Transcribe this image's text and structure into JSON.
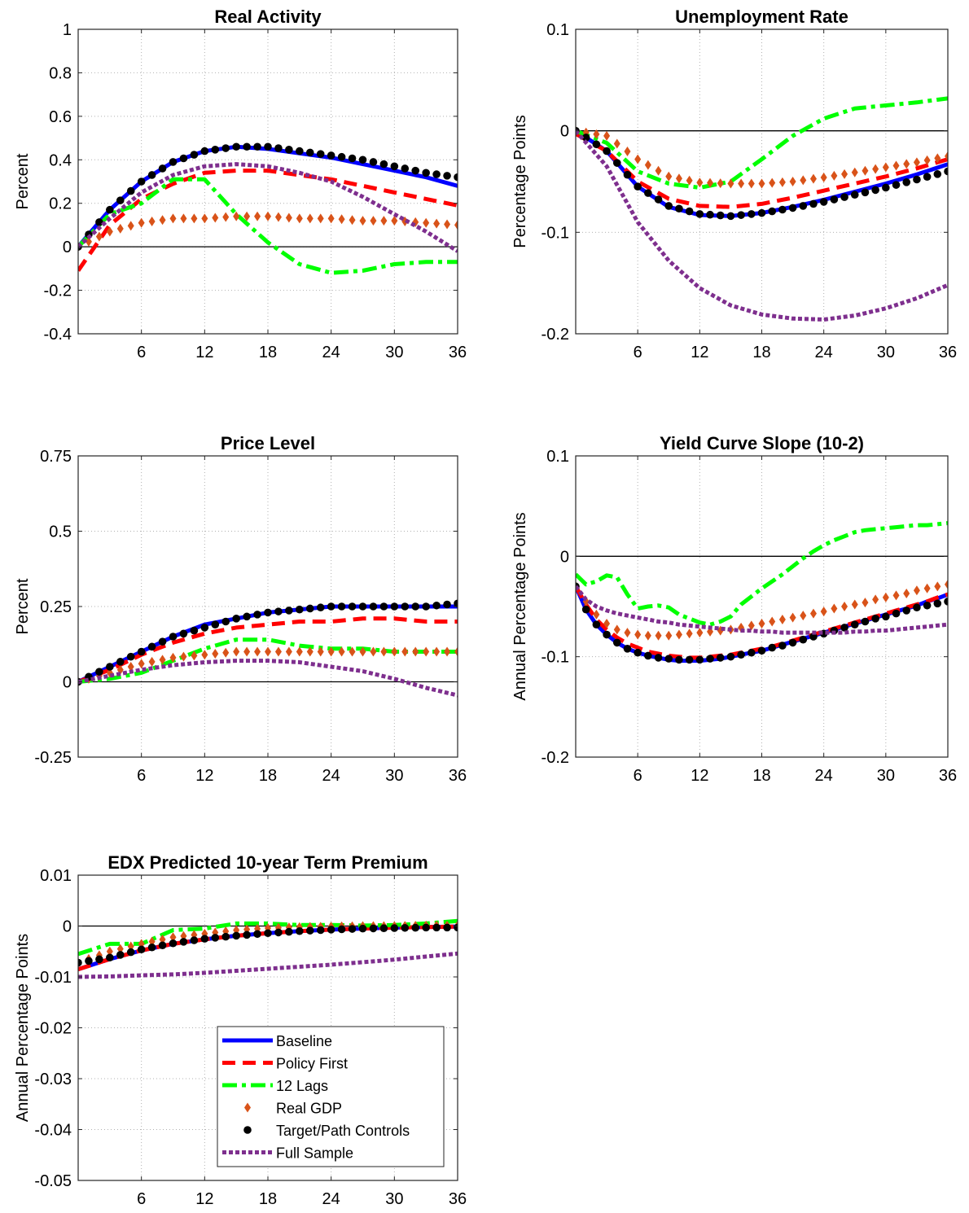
{
  "colors": {
    "baseline": "#0000ff",
    "policy_first": "#ff0000",
    "lags12": "#00ff00",
    "real_gdp": "#d95319",
    "target_path": "#000000",
    "full_sample": "#7e2f8e"
  },
  "legend": {
    "placement": "inside panel 5, lower-right",
    "entries": [
      "Baseline",
      "Policy First",
      "12 Lags",
      "Real GDP",
      "Target/Path Controls",
      "Full Sample"
    ]
  },
  "chart_data": [
    {
      "type": "line",
      "title": "Real Activity",
      "xlabel": "",
      "ylabel": "Percent",
      "xlim": [
        0,
        36
      ],
      "ylim": [
        -0.4,
        1
      ],
      "xticks": [
        6,
        12,
        18,
        24,
        30,
        36
      ],
      "xtick_labels": [
        "6",
        "12",
        "18",
        "24",
        "30",
        "36"
      ],
      "yticks": [
        -0.4,
        -0.2,
        0,
        0.2,
        0.4,
        0.6,
        0.8,
        1
      ],
      "ytick_labels": [
        "-0.4",
        "-0.2",
        "0",
        "0.2",
        "0.4",
        "0.6",
        "0.8",
        "1"
      ],
      "grid": true,
      "zero_line": true,
      "x": [
        0,
        3,
        6,
        9,
        12,
        15,
        18,
        21,
        24,
        27,
        30,
        33,
        36
      ],
      "series": [
        {
          "name": "Baseline",
          "values": [
            0,
            0.17,
            0.3,
            0.39,
            0.44,
            0.46,
            0.45,
            0.43,
            0.41,
            0.38,
            0.35,
            0.32,
            0.28
          ]
        },
        {
          "name": "Policy First",
          "values": [
            -0.11,
            0.1,
            0.22,
            0.29,
            0.34,
            0.35,
            0.35,
            0.33,
            0.31,
            0.28,
            0.25,
            0.22,
            0.19
          ]
        },
        {
          "name": "12 Lags",
          "values": [
            0,
            0.15,
            0.2,
            0.31,
            0.31,
            0.15,
            0.02,
            -0.08,
            -0.12,
            -0.11,
            -0.08,
            -0.07,
            -0.07
          ]
        },
        {
          "name": "Real GDP",
          "values": [
            0,
            0.07,
            0.11,
            0.13,
            0.13,
            0.14,
            0.14,
            0.13,
            0.13,
            0.12,
            0.12,
            0.11,
            0.1
          ]
        },
        {
          "name": "Target/Path Controls",
          "values": [
            0,
            0.17,
            0.3,
            0.39,
            0.44,
            0.46,
            0.46,
            0.44,
            0.42,
            0.4,
            0.37,
            0.34,
            0.32
          ]
        },
        {
          "name": "Full Sample",
          "values": [
            0,
            0.13,
            0.25,
            0.33,
            0.37,
            0.38,
            0.37,
            0.34,
            0.3,
            0.23,
            0.15,
            0.07,
            -0.02
          ]
        }
      ]
    },
    {
      "type": "line",
      "title": "Unemployment Rate",
      "xlabel": "",
      "ylabel": "Percentage Points",
      "xlim": [
        0,
        36
      ],
      "ylim": [
        -0.2,
        0.1
      ],
      "xticks": [
        6,
        12,
        18,
        24,
        30,
        36
      ],
      "xtick_labels": [
        "6",
        "12",
        "18",
        "24",
        "30",
        "36"
      ],
      "yticks": [
        -0.2,
        -0.1,
        0,
        0.1
      ],
      "ytick_labels": [
        "-0.2",
        "-0.1",
        "0",
        "0.1"
      ],
      "grid": true,
      "zero_line": true,
      "x": [
        0,
        3,
        6,
        9,
        12,
        15,
        18,
        21,
        24,
        27,
        30,
        33,
        36
      ],
      "series": [
        {
          "name": "Baseline",
          "values": [
            0,
            -0.02,
            -0.055,
            -0.075,
            -0.083,
            -0.084,
            -0.081,
            -0.075,
            -0.068,
            -0.06,
            -0.052,
            -0.043,
            -0.033
          ]
        },
        {
          "name": "Policy First",
          "values": [
            -0.003,
            -0.02,
            -0.05,
            -0.067,
            -0.074,
            -0.075,
            -0.072,
            -0.066,
            -0.059,
            -0.052,
            -0.045,
            -0.037,
            -0.028
          ]
        },
        {
          "name": "12 Lags",
          "values": [
            0,
            -0.012,
            -0.04,
            -0.052,
            -0.056,
            -0.05,
            -0.028,
            -0.005,
            0.012,
            0.022,
            0.025,
            0.028,
            0.032
          ]
        },
        {
          "name": "Real GDP",
          "values": [
            0,
            -0.005,
            -0.028,
            -0.045,
            -0.051,
            -0.052,
            -0.052,
            -0.05,
            -0.046,
            -0.041,
            -0.036,
            -0.031,
            -0.025
          ]
        },
        {
          "name": "Target/Path Controls",
          "values": [
            0,
            -0.02,
            -0.055,
            -0.074,
            -0.082,
            -0.084,
            -0.081,
            -0.076,
            -0.07,
            -0.063,
            -0.056,
            -0.048,
            -0.04
          ]
        },
        {
          "name": "Full Sample",
          "values": [
            0,
            -0.035,
            -0.09,
            -0.128,
            -0.155,
            -0.172,
            -0.181,
            -0.185,
            -0.186,
            -0.182,
            -0.175,
            -0.165,
            -0.152
          ]
        }
      ]
    },
    {
      "type": "line",
      "title": "Price Level",
      "xlabel": "",
      "ylabel": "Percent",
      "xlim": [
        0,
        36
      ],
      "ylim": [
        -0.25,
        0.75
      ],
      "xticks": [
        6,
        12,
        18,
        24,
        30,
        36
      ],
      "xtick_labels": [
        "6",
        "12",
        "18",
        "24",
        "30",
        "36"
      ],
      "yticks": [
        -0.25,
        0,
        0.25,
        0.5,
        0.75
      ],
      "ytick_labels": [
        "-0.25",
        "0",
        "0.25",
        "0.5",
        "0.75"
      ],
      "grid": true,
      "zero_line": true,
      "x": [
        0,
        3,
        6,
        9,
        12,
        15,
        18,
        21,
        24,
        27,
        30,
        33,
        36
      ],
      "series": [
        {
          "name": "Baseline",
          "values": [
            0,
            0.05,
            0.1,
            0.15,
            0.19,
            0.21,
            0.23,
            0.24,
            0.25,
            0.25,
            0.25,
            0.25,
            0.25
          ]
        },
        {
          "name": "Policy First",
          "values": [
            0,
            0.04,
            0.09,
            0.13,
            0.16,
            0.18,
            0.19,
            0.2,
            0.2,
            0.21,
            0.21,
            0.2,
            0.2
          ]
        },
        {
          "name": "12 Lags",
          "values": [
            0,
            0.01,
            0.03,
            0.07,
            0.11,
            0.14,
            0.14,
            0.12,
            0.11,
            0.11,
            0.1,
            0.1,
            0.1
          ]
        },
        {
          "name": "Real GDP",
          "values": [
            0,
            0.03,
            0.06,
            0.08,
            0.09,
            0.1,
            0.1,
            0.1,
            0.1,
            0.1,
            0.1,
            0.1,
            0.1
          ]
        },
        {
          "name": "Target/Path Controls",
          "values": [
            0,
            0.05,
            0.1,
            0.15,
            0.18,
            0.21,
            0.23,
            0.24,
            0.25,
            0.25,
            0.25,
            0.25,
            0.26
          ]
        },
        {
          "name": "Full Sample",
          "values": [
            0,
            0.02,
            0.04,
            0.055,
            0.065,
            0.07,
            0.07,
            0.065,
            0.05,
            0.035,
            0.01,
            -0.02,
            -0.045
          ]
        }
      ]
    },
    {
      "type": "line",
      "title": "Yield Curve Slope (10-2)",
      "xlabel": "",
      "ylabel": "Annual Percentage Points",
      "xlim": [
        0,
        36
      ],
      "ylim": [
        -0.2,
        0.1
      ],
      "xticks": [
        6,
        12,
        18,
        24,
        30,
        36
      ],
      "xtick_labels": [
        "6",
        "12",
        "18",
        "24",
        "30",
        "36"
      ],
      "yticks": [
        -0.2,
        -0.1,
        0,
        0.1
      ],
      "ytick_labels": [
        "-0.2",
        "-0.1",
        "0",
        "0.1"
      ],
      "grid": true,
      "zero_line": true,
      "x": [
        0,
        1,
        2,
        3,
        4,
        5,
        6,
        7,
        8,
        9,
        10,
        11,
        12,
        13,
        14,
        15,
        16,
        17,
        18,
        19,
        20,
        21,
        22,
        23,
        24,
        25,
        26,
        27,
        28,
        29,
        30,
        31,
        32,
        33,
        34,
        35,
        36
      ],
      "series": [
        {
          "name": "Baseline",
          "values": [
            -0.03,
            -0.053,
            -0.068,
            -0.078,
            -0.086,
            -0.092,
            -0.096,
            -0.099,
            -0.101,
            -0.103,
            -0.104,
            -0.104,
            -0.104,
            -0.103,
            -0.102,
            -0.1,
            -0.098,
            -0.096,
            -0.094,
            -0.091,
            -0.088,
            -0.085,
            -0.082,
            -0.079,
            -0.076,
            -0.073,
            -0.07,
            -0.067,
            -0.064,
            -0.061,
            -0.058,
            -0.055,
            -0.052,
            -0.049,
            -0.045,
            -0.042,
            -0.038
          ]
        },
        {
          "name": "Policy First",
          "values": [
            -0.03,
            -0.048,
            -0.063,
            -0.073,
            -0.081,
            -0.087,
            -0.091,
            -0.095,
            -0.097,
            -0.099,
            -0.1,
            -0.101,
            -0.101,
            -0.1,
            -0.099,
            -0.098,
            -0.096,
            -0.094,
            -0.092,
            -0.09,
            -0.087,
            -0.084,
            -0.081,
            -0.078,
            -0.075,
            -0.072,
            -0.069,
            -0.066,
            -0.063,
            -0.06,
            -0.057,
            -0.054,
            -0.051,
            -0.048,
            -0.045,
            -0.041,
            -0.038
          ]
        },
        {
          "name": "12 Lags",
          "values": [
            -0.018,
            -0.028,
            -0.025,
            -0.019,
            -0.021,
            -0.038,
            -0.052,
            -0.05,
            -0.049,
            -0.051,
            -0.058,
            -0.062,
            -0.066,
            -0.068,
            -0.065,
            -0.06,
            -0.048,
            -0.04,
            -0.032,
            -0.025,
            -0.018,
            -0.01,
            -0.002,
            0.005,
            0.011,
            0.016,
            0.02,
            0.024,
            0.026,
            0.027,
            0.028,
            0.029,
            0.03,
            0.031,
            0.031,
            0.032,
            0.033
          ]
        },
        {
          "name": "Real GDP",
          "values": [
            -0.03,
            -0.045,
            -0.058,
            -0.067,
            -0.073,
            -0.076,
            -0.078,
            -0.079,
            -0.079,
            -0.079,
            -0.078,
            -0.077,
            -0.076,
            -0.075,
            -0.074,
            -0.073,
            -0.071,
            -0.069,
            -0.067,
            -0.065,
            -0.063,
            -0.061,
            -0.059,
            -0.057,
            -0.055,
            -0.052,
            -0.05,
            -0.048,
            -0.046,
            -0.043,
            -0.041,
            -0.039,
            -0.037,
            -0.034,
            -0.032,
            -0.03,
            -0.028
          ]
        },
        {
          "name": "Target/Path Controls",
          "values": [
            -0.03,
            -0.053,
            -0.068,
            -0.078,
            -0.086,
            -0.092,
            -0.096,
            -0.099,
            -0.101,
            -0.102,
            -0.103,
            -0.103,
            -0.103,
            -0.102,
            -0.101,
            -0.1,
            -0.098,
            -0.096,
            -0.094,
            -0.091,
            -0.089,
            -0.086,
            -0.083,
            -0.08,
            -0.077,
            -0.074,
            -0.071,
            -0.068,
            -0.065,
            -0.062,
            -0.06,
            -0.057,
            -0.054,
            -0.051,
            -0.049,
            -0.047,
            -0.045
          ]
        },
        {
          "name": "Full Sample",
          "values": [
            -0.03,
            -0.043,
            -0.05,
            -0.054,
            -0.057,
            -0.059,
            -0.061,
            -0.063,
            -0.065,
            -0.066,
            -0.068,
            -0.069,
            -0.07,
            -0.071,
            -0.072,
            -0.073,
            -0.074,
            -0.074,
            -0.075,
            -0.075,
            -0.076,
            -0.076,
            -0.076,
            -0.076,
            -0.076,
            -0.076,
            -0.076,
            -0.075,
            -0.075,
            -0.074,
            -0.074,
            -0.073,
            -0.072,
            -0.071,
            -0.07,
            -0.069,
            -0.068
          ]
        }
      ]
    },
    {
      "type": "line",
      "title": "EDX Predicted 10-year Term Premium",
      "xlabel": "",
      "ylabel": "Annual Percentage Points",
      "xlim": [
        0,
        36
      ],
      "ylim": [
        -0.05,
        0.01
      ],
      "xticks": [
        6,
        12,
        18,
        24,
        30,
        36
      ],
      "xtick_labels": [
        "6",
        "12",
        "18",
        "24",
        "30",
        "36"
      ],
      "yticks": [
        -0.05,
        -0.04,
        -0.03,
        -0.02,
        -0.01,
        0,
        0.01
      ],
      "ytick_labels": [
        "-0.05",
        "-0.04",
        "-0.03",
        "-0.02",
        "-0.01",
        "0",
        "0.01"
      ],
      "grid": true,
      "zero_line": true,
      "x": [
        0,
        3,
        6,
        9,
        12,
        15,
        18,
        21,
        24,
        27,
        30,
        33,
        36
      ],
      "series": [
        {
          "name": "Baseline",
          "values": [
            -0.0085,
            -0.0065,
            -0.0048,
            -0.0035,
            -0.0026,
            -0.0019,
            -0.0014,
            -0.001,
            -0.0007,
            -0.0005,
            -0.0003,
            -0.0002,
            -0.0001
          ]
        },
        {
          "name": "Policy First",
          "values": [
            -0.0085,
            -0.0065,
            -0.0048,
            -0.0035,
            -0.0026,
            -0.0019,
            -0.0014,
            -0.001,
            -0.0007,
            -0.0005,
            -0.0003,
            -0.0002,
            -0.0001
          ]
        },
        {
          "name": "12 Lags",
          "values": [
            -0.0055,
            -0.0035,
            -0.0035,
            -0.0008,
            -0.0005,
            0.0005,
            0.0005,
            0.0002,
            0.0002,
            0.0001,
            0.0002,
            0.0005,
            0.001
          ]
        },
        {
          "name": "Real GDP",
          "values": [
            -0.0072,
            -0.005,
            -0.0035,
            -0.0022,
            -0.0015,
            -0.0008,
            -0.0004,
            -0.0002,
            -0.0001,
            0.0,
            0.0,
            0.0001,
            0.0001
          ]
        },
        {
          "name": "Target/Path Controls",
          "values": [
            -0.0072,
            -0.0062,
            -0.0046,
            -0.0034,
            -0.0025,
            -0.0019,
            -0.0014,
            -0.001,
            -0.0007,
            -0.0005,
            -0.0004,
            -0.0003,
            -0.0003
          ]
        },
        {
          "name": "Full Sample",
          "values": [
            -0.01,
            -0.0099,
            -0.0097,
            -0.0095,
            -0.0092,
            -0.0088,
            -0.0084,
            -0.008,
            -0.0076,
            -0.0071,
            -0.0066,
            -0.006,
            -0.0054
          ]
        }
      ]
    }
  ]
}
